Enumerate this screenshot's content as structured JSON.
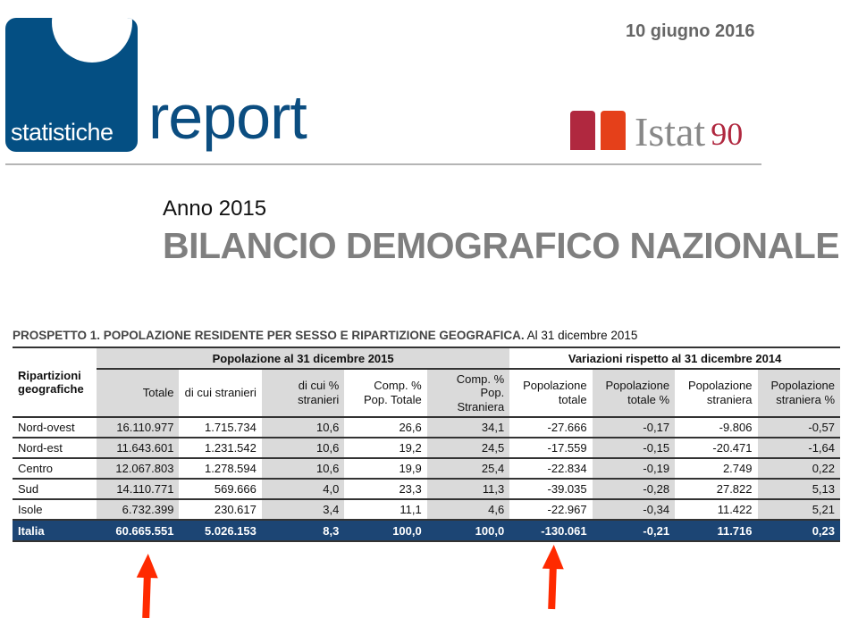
{
  "header": {
    "logo_text": "statistiche",
    "brand": "report",
    "date": "10 giugno 2016",
    "publisher": "Istat",
    "anniversary": "90"
  },
  "title": {
    "year": "Anno 2015",
    "main": "BILANCIO DEMOGRAFICO NAZIONALE"
  },
  "table": {
    "caption_bold": "PROSPETTO 1. POPOLAZIONE RESIDENTE PER SESSO E RIPARTIZIONE GEOGRAFICA.",
    "caption_rest": " Al 31 dicembre 2015",
    "row_header": "Ripartizioni geografiche",
    "group1": "Popolazione al 31 dicembre 2015",
    "group2": "Variazioni rispetto al 31 dicembre 2014",
    "columns": [
      "Totale",
      "di cui stranieri",
      "di cui % stranieri",
      "Comp. % Pop. Totale",
      "Comp. % Pop. Straniera",
      "Popolazione totale",
      "Popolazione totale %",
      "Popolazione straniera",
      "Popolazione straniera %"
    ],
    "rows": [
      {
        "label": "Nord-ovest",
        "v": [
          "16.110.977",
          "1.715.734",
          "10,6",
          "26,6",
          "34,1",
          "-27.666",
          "-0,17",
          "-9.806",
          "-0,57"
        ]
      },
      {
        "label": "Nord-est",
        "v": [
          "11.643.601",
          "1.231.542",
          "10,6",
          "19,2",
          "24,5",
          "-17.559",
          "-0,15",
          "-20.471",
          "-1,64"
        ]
      },
      {
        "label": "Centro",
        "v": [
          "12.067.803",
          "1.278.594",
          "10,6",
          "19,9",
          "25,4",
          "-22.834",
          "-0,19",
          "2.749",
          "0,22"
        ]
      },
      {
        "label": "Sud",
        "v": [
          "14.110.771",
          "569.666",
          "4,0",
          "23,3",
          "11,3",
          "-39.035",
          "-0,28",
          "27.822",
          "5,13"
        ]
      },
      {
        "label": "Isole",
        "v": [
          "6.732.399",
          "230.617",
          "3,4",
          "11,1",
          "4,6",
          "-22.967",
          "-0,34",
          "11.422",
          "5,21"
        ]
      }
    ],
    "total": {
      "label": "Italia",
      "v": [
        "60.665.551",
        "5.026.153",
        "8,3",
        "100,0",
        "100,0",
        "-130.061",
        "-0,21",
        "11.716",
        "0,23"
      ]
    }
  },
  "colors": {
    "brand_blue": "#044f83",
    "total_row": "#1c4574",
    "arrow": "#ff2a00",
    "istat_red": "#b0283f",
    "istat_orange": "#e5401a"
  }
}
